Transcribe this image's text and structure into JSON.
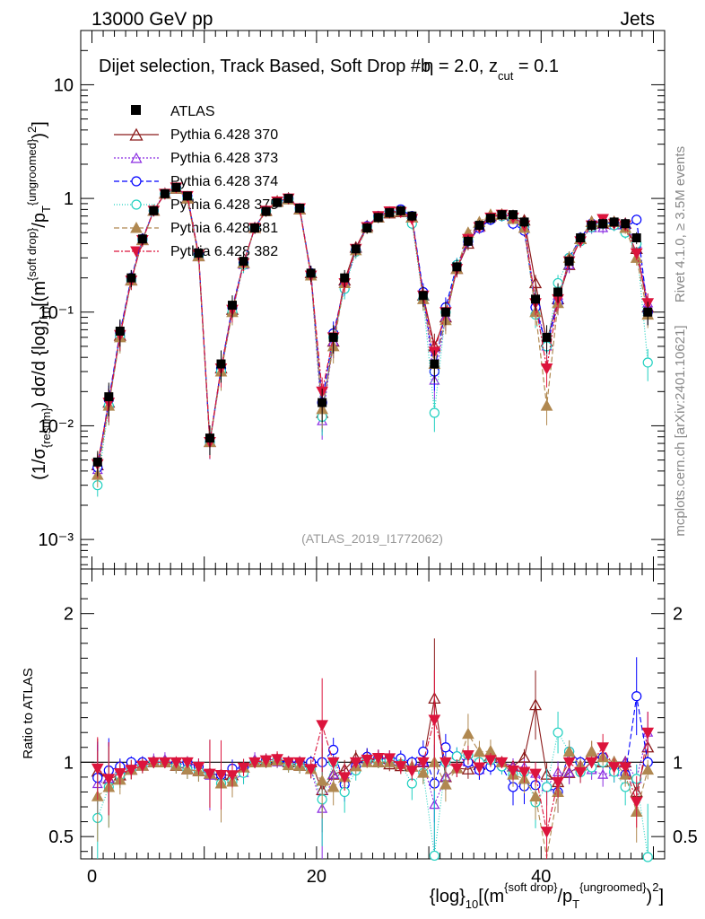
{
  "header": {
    "energy": "13000 GeV pp",
    "category": "Jets"
  },
  "side_labels": {
    "rivet": "Rivet 4.1.0, ≥ 3.5M events",
    "mcplots": "mcplots.cern.ch [arXiv:2401.10621]"
  },
  "colors": {
    "atlas": "#000000",
    "p370": "#8b1a1a",
    "p373": "#8a2be2",
    "p374": "#0000ff",
    "p375": "#20d0c0",
    "p381": "#b08850",
    "p382": "#dc143c"
  },
  "chart_data": [
    {
      "type": "scatter",
      "name": "main",
      "title": "Dijet selection, Track Based, Soft Drop #bη = 2.0, z_cut = 0.1",
      "title_text": "Dijet selection, Track Based, Soft Drop #b",
      "title_eta": "η = 2.0, z",
      "title_sub": "cut",
      "title_end": " = 0.1",
      "ylabel": "(1/σ_resum) dσ/d {log}_10[(m^soft drop/p_T^ungroomed)^2]",
      "yscale": "log",
      "ylim": [
        0.00055,
        30
      ],
      "yticks": [
        "10⁻³",
        "10⁻²",
        "10⁻¹",
        "1",
        "10"
      ],
      "watermark": "(ATLAS_2019_I1772062)",
      "x": [
        0.5,
        1.5,
        2.5,
        3.5,
        4.5,
        5.5,
        6.5,
        7.5,
        8.5,
        9.5,
        10.5,
        11.5,
        12.5,
        13.5,
        14.5,
        15.5,
        16.5,
        17.5,
        18.5,
        19.5,
        20.5,
        21.5,
        22.5,
        23.5,
        24.5,
        25.5,
        26.5,
        27.5,
        28.5,
        29.5,
        30.5,
        31.5,
        32.5,
        33.5,
        34.5,
        35.5,
        36.5,
        37.5,
        38.5,
        39.5,
        40.5,
        41.5,
        42.5,
        43.5,
        44.5,
        45.5,
        46.5,
        47.5,
        48.5,
        49.5
      ],
      "series": [
        {
          "name": "ATLAS",
          "values": [
            0.0048,
            0.018,
            0.068,
            0.2,
            0.44,
            0.78,
            1.1,
            1.25,
            1.05,
            0.33,
            0.0078,
            0.035,
            0.115,
            0.28,
            0.55,
            0.77,
            0.92,
            1.0,
            0.82,
            0.22,
            0.016,
            0.06,
            0.2,
            0.36,
            0.55,
            0.68,
            0.75,
            0.78,
            0.7,
            0.14,
            0.035,
            0.1,
            0.25,
            0.42,
            0.58,
            0.67,
            0.72,
            0.72,
            0.62,
            0.13,
            0.06,
            0.15,
            0.28,
            0.45,
            0.58,
            0.6,
            0.62,
            0.6,
            0.45,
            0.1
          ]
        },
        {
          "name": "Pythia 6.428 370",
          "values": [
            0.0045,
            0.016,
            0.062,
            0.19,
            0.43,
            0.78,
            1.1,
            1.22,
            1.0,
            0.31,
            0.0072,
            0.032,
            0.105,
            0.27,
            0.55,
            0.78,
            0.94,
            1.0,
            0.8,
            0.22,
            0.013,
            0.055,
            0.19,
            0.37,
            0.57,
            0.68,
            0.74,
            0.76,
            0.68,
            0.14,
            0.05,
            0.09,
            0.24,
            0.4,
            0.57,
            0.7,
            0.72,
            0.7,
            0.64,
            0.18,
            0.055,
            0.13,
            0.26,
            0.44,
            0.62,
            0.6,
            0.62,
            0.6,
            0.36,
            0.11
          ]
        },
        {
          "name": "Pythia 6.428 373",
          "values": [
            0.0041,
            0.016,
            0.065,
            0.195,
            0.44,
            0.79,
            1.12,
            1.23,
            1.04,
            0.32,
            0.0071,
            0.03,
            0.1,
            0.26,
            0.56,
            0.77,
            0.92,
            1.0,
            0.82,
            0.21,
            0.011,
            0.055,
            0.18,
            0.36,
            0.56,
            0.7,
            0.76,
            0.78,
            0.68,
            0.14,
            0.025,
            0.09,
            0.24,
            0.42,
            0.55,
            0.67,
            0.72,
            0.7,
            0.6,
            0.12,
            0.05,
            0.14,
            0.26,
            0.44,
            0.55,
            0.55,
            0.58,
            0.6,
            0.4,
            0.12
          ]
        },
        {
          "name": "Pythia 6.428 374",
          "values": [
            0.0043,
            0.017,
            0.066,
            0.2,
            0.44,
            0.78,
            1.1,
            1.24,
            1.05,
            0.32,
            0.0072,
            0.032,
            0.11,
            0.27,
            0.55,
            0.78,
            0.93,
            1.0,
            0.82,
            0.22,
            0.016,
            0.065,
            0.17,
            0.35,
            0.57,
            0.7,
            0.77,
            0.8,
            0.7,
            0.15,
            0.03,
            0.11,
            0.26,
            0.42,
            0.55,
            0.65,
            0.7,
            0.6,
            0.52,
            0.11,
            0.05,
            0.12,
            0.3,
            0.45,
            0.6,
            0.62,
            0.6,
            0.55,
            0.65,
            0.1
          ]
        },
        {
          "name": "Pythia 6.428 375",
          "values": [
            0.003,
            0.015,
            0.062,
            0.19,
            0.43,
            0.78,
            1.1,
            1.22,
            1.0,
            0.31,
            0.0072,
            0.03,
            0.1,
            0.26,
            0.55,
            0.77,
            0.93,
            0.98,
            0.8,
            0.21,
            0.012,
            0.06,
            0.16,
            0.34,
            0.56,
            0.68,
            0.76,
            0.77,
            0.6,
            0.13,
            0.013,
            0.1,
            0.26,
            0.44,
            0.58,
            0.68,
            0.7,
            0.66,
            0.58,
            0.095,
            0.05,
            0.18,
            0.3,
            0.42,
            0.56,
            0.6,
            0.58,
            0.5,
            0.4,
            0.036
          ]
        },
        {
          "name": "Pythia 6.428 381",
          "values": [
            0.0037,
            0.015,
            0.06,
            0.19,
            0.43,
            0.78,
            1.1,
            1.22,
            1.0,
            0.31,
            0.0072,
            0.03,
            0.1,
            0.27,
            0.55,
            0.77,
            0.93,
            0.98,
            0.8,
            0.21,
            0.014,
            0.05,
            0.18,
            0.35,
            0.55,
            0.68,
            0.75,
            0.77,
            0.68,
            0.13,
            0.035,
            0.085,
            0.24,
            0.5,
            0.62,
            0.72,
            0.72,
            0.66,
            0.55,
            0.1,
            0.015,
            0.12,
            0.3,
            0.44,
            0.62,
            0.62,
            0.62,
            0.55,
            0.3,
            0.095
          ]
        },
        {
          "name": "Pythia 6.428 382",
          "values": [
            0.0046,
            0.016,
            0.063,
            0.19,
            0.43,
            0.78,
            1.1,
            1.25,
            1.05,
            0.32,
            0.0072,
            0.032,
            0.105,
            0.27,
            0.55,
            0.78,
            0.94,
            1.0,
            0.82,
            0.21,
            0.02,
            0.06,
            0.18,
            0.36,
            0.56,
            0.7,
            0.77,
            0.76,
            0.66,
            0.14,
            0.045,
            0.1,
            0.24,
            0.44,
            0.56,
            0.68,
            0.72,
            0.68,
            0.58,
            0.12,
            0.032,
            0.13,
            0.28,
            0.42,
            0.58,
            0.66,
            0.6,
            0.58,
            0.33,
            0.12
          ]
        }
      ]
    },
    {
      "type": "scatter",
      "name": "ratio",
      "ylabel": "Ratio to ATLAS",
      "ylim": [
        0.35,
        2.3
      ],
      "yticks": [
        0.5,
        1,
        2
      ],
      "xlabel": "{log}_10[(m^soft drop/p_T^ungroomed)^2]",
      "xlim": [
        -1.0,
        51.0
      ],
      "xticks": [
        0,
        20,
        40
      ]
    }
  ]
}
